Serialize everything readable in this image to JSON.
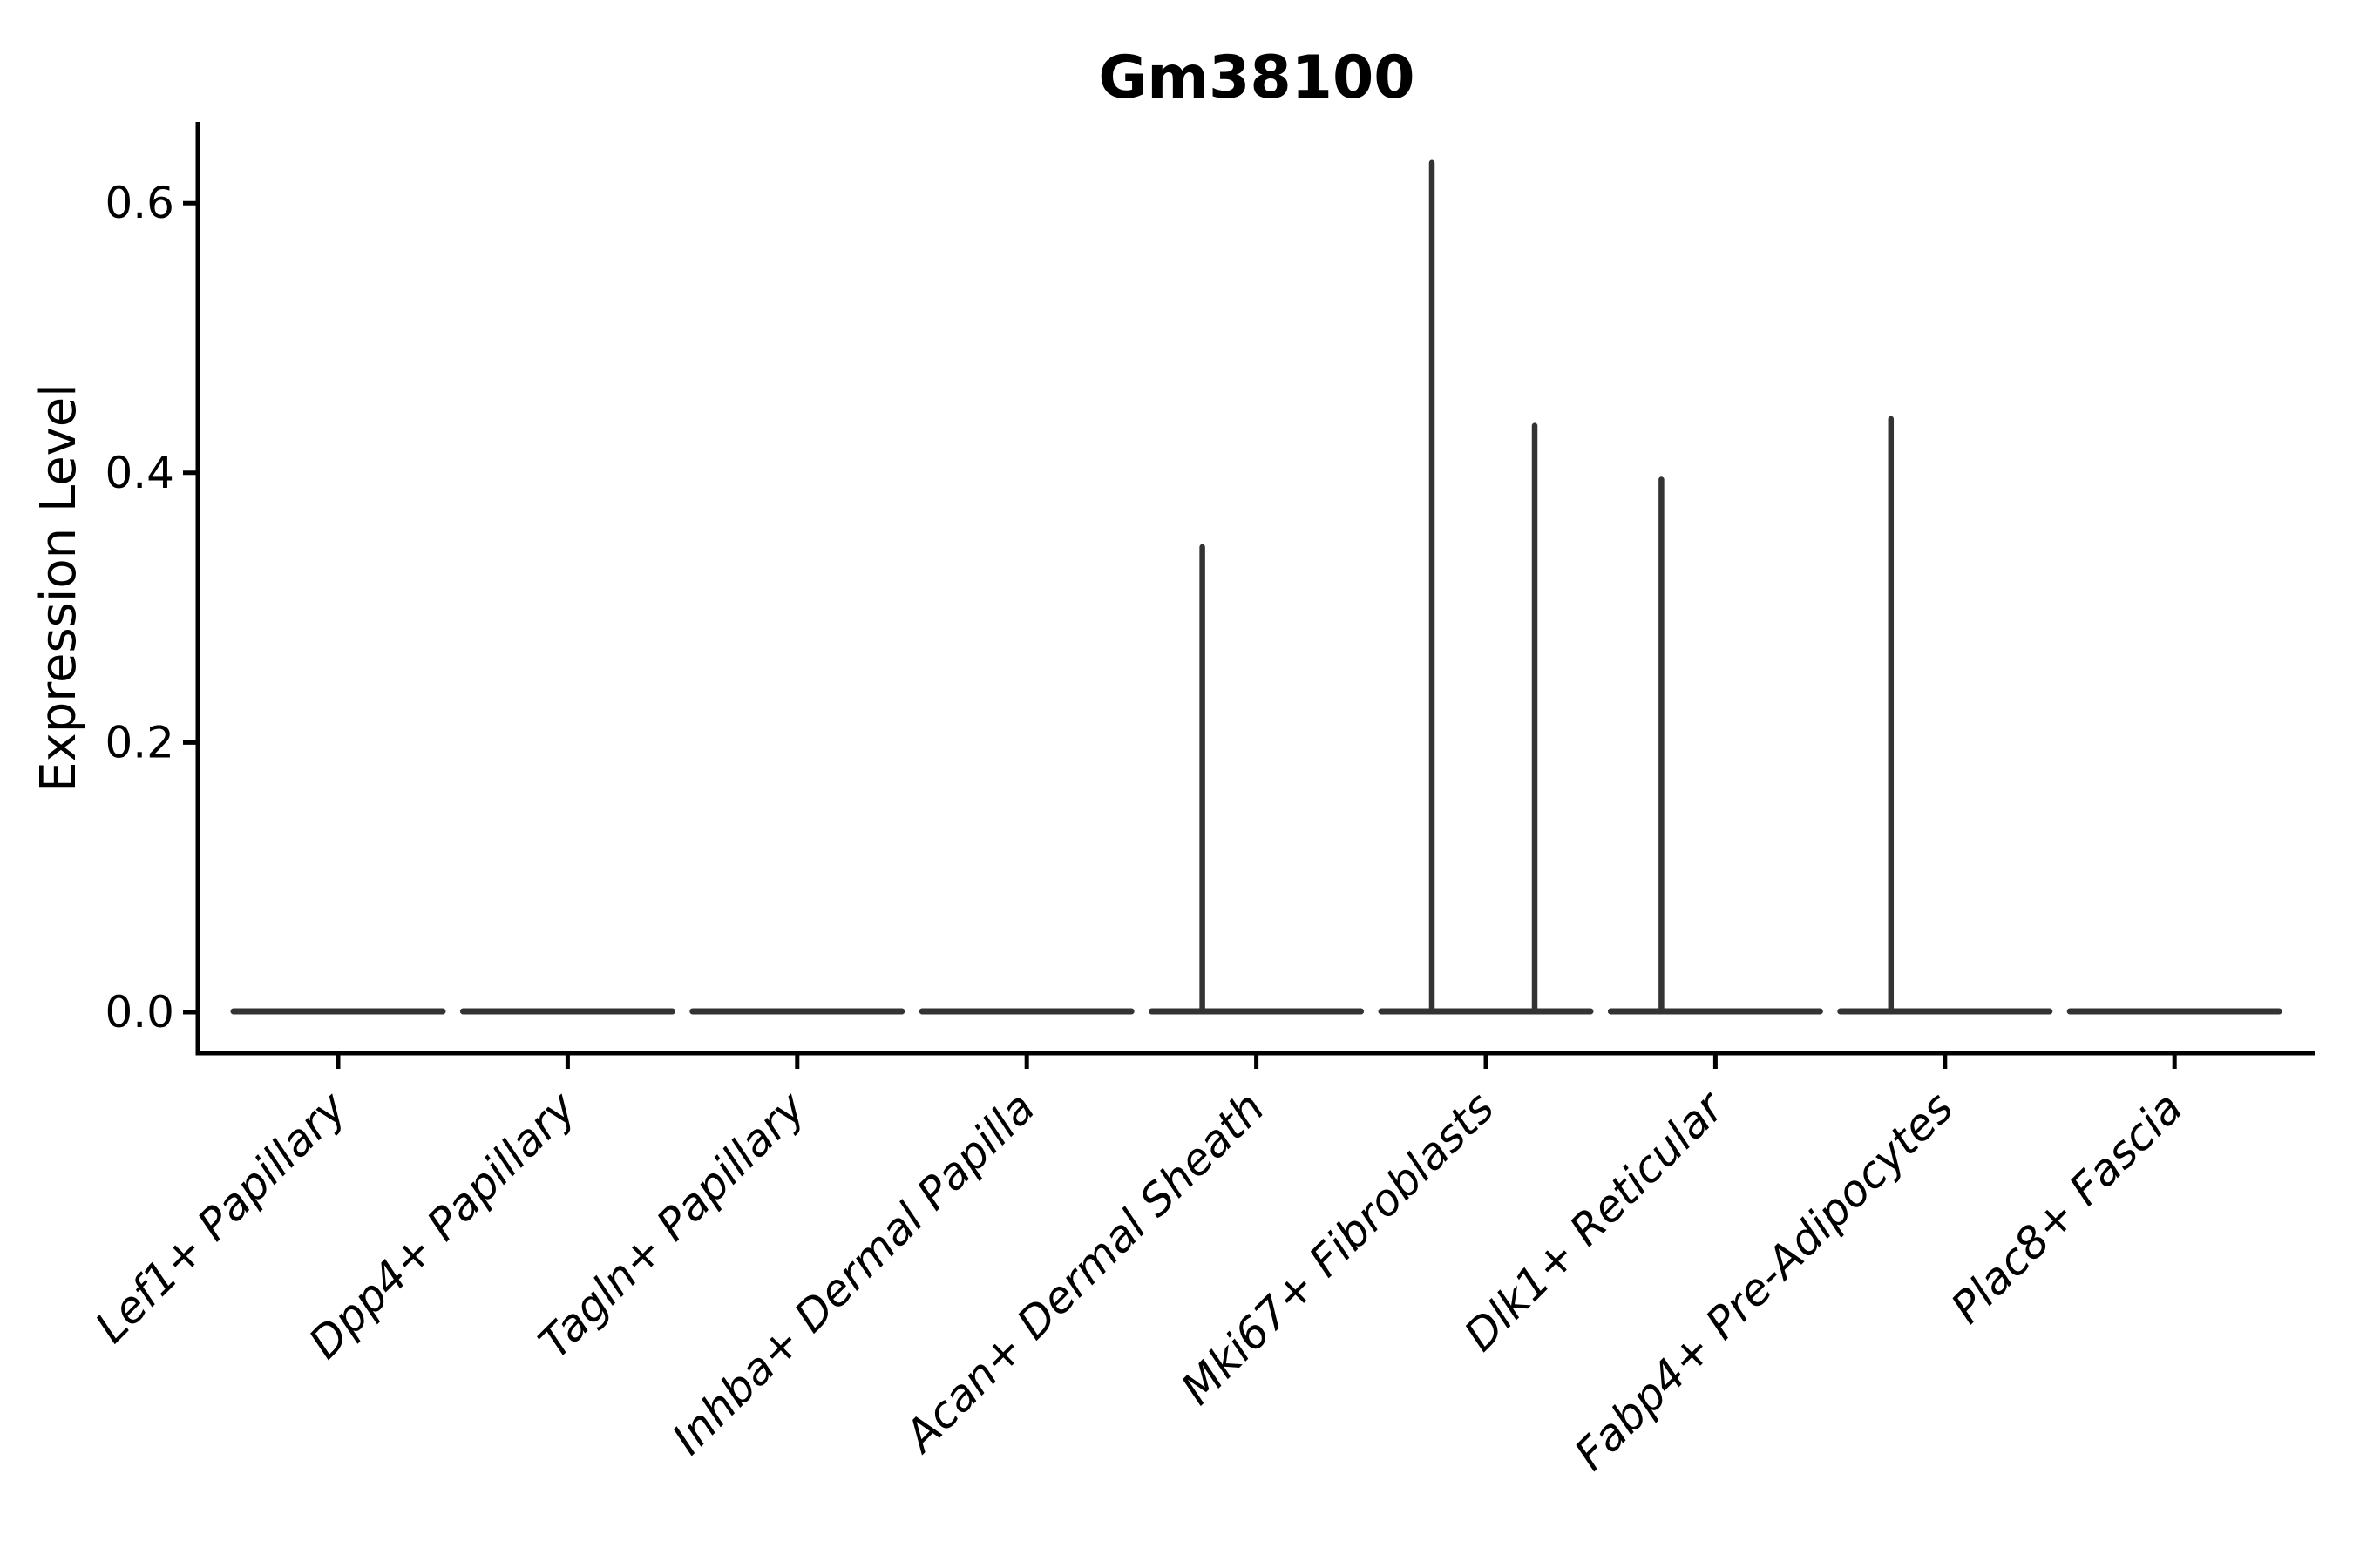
{
  "title": "Gm38100",
  "chart_data": {
    "type": "violin",
    "title": "Gm38100",
    "xlabel": "",
    "ylabel": "Expression Level",
    "ylim": [
      0,
      0.66
    ],
    "yticks": [
      0.0,
      0.2,
      0.4,
      0.6
    ],
    "ytick_labels": [
      "0.0",
      "0.2",
      "0.4",
      "0.6"
    ],
    "grid": false,
    "legend": "none",
    "x_label_rotation": 45,
    "x_label_style": "italic",
    "categories": [
      "Lef1+ Papillary",
      "Dpp4+ Papillary",
      "Tagln+ Papillary",
      "Inhba+ Dermal Papilla",
      "Acan+ Dermal Sheath",
      "Mki67+ Fibroblasts",
      "Dlk1+ Reticular",
      "Fabp4+ Pre-Adipocytes",
      "Plac8+ Fascia"
    ],
    "violins": [
      {
        "category": "Lef1+ Papillary",
        "baseline_value": 0.0,
        "spikes": []
      },
      {
        "category": "Dpp4+ Papillary",
        "baseline_value": 0.0,
        "spikes": []
      },
      {
        "category": "Tagln+ Papillary",
        "baseline_value": 0.0,
        "spikes": []
      },
      {
        "category": "Inhba+ Dermal Papilla",
        "baseline_value": 0.0,
        "spikes": []
      },
      {
        "category": "Acan+ Dermal Sheath",
        "baseline_value": 0.0,
        "spikes": [
          {
            "side": "left",
            "max_value": 0.345
          }
        ]
      },
      {
        "category": "Mki67+ Fibroblasts",
        "baseline_value": 0.0,
        "spikes": [
          {
            "side": "left",
            "max_value": 0.63
          },
          {
            "side": "right",
            "max_value": 0.435
          }
        ]
      },
      {
        "category": "Dlk1+ Reticular",
        "baseline_value": 0.0,
        "spikes": [
          {
            "side": "left",
            "max_value": 0.395
          }
        ]
      },
      {
        "category": "Fabp4+ Pre-Adipocytes",
        "baseline_value": 0.0,
        "spikes": [
          {
            "side": "left",
            "max_value": 0.44
          }
        ]
      },
      {
        "category": "Plac8+ Fascia",
        "baseline_value": 0.0,
        "spikes": []
      }
    ],
    "colors": {
      "violin_line": "#333333",
      "axis": "#000000",
      "text": "#000000",
      "background": "#ffffff"
    }
  }
}
